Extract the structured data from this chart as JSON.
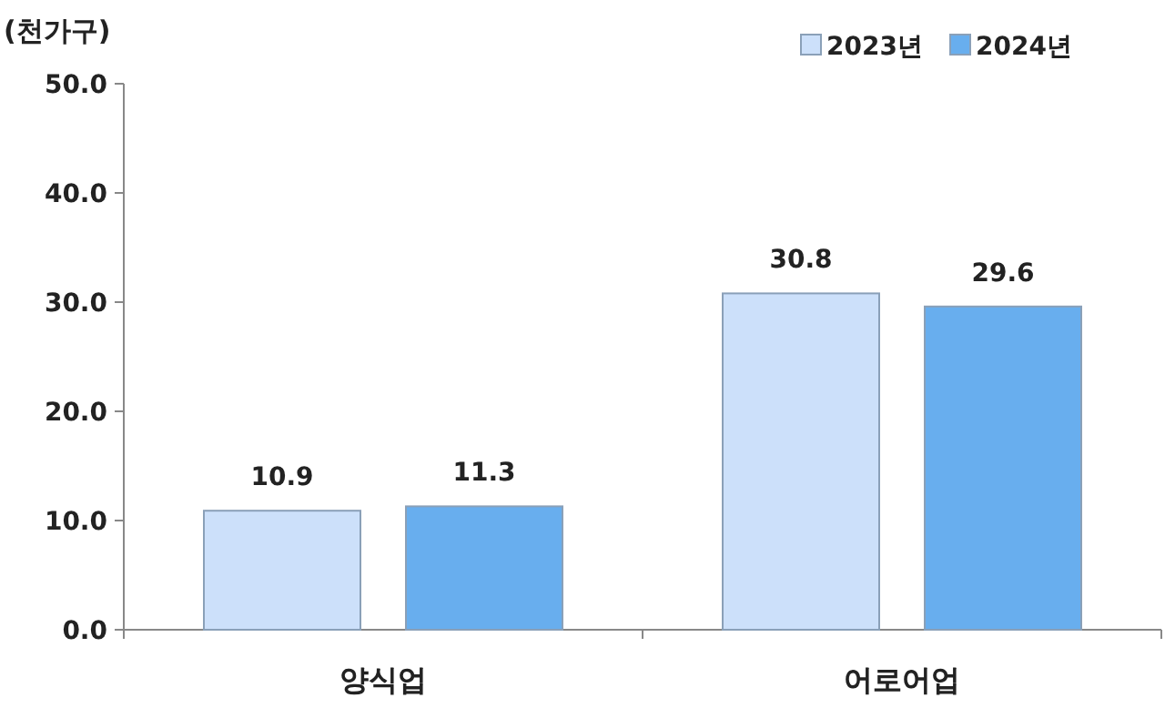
{
  "chart_data": {
    "type": "bar",
    "ylabel": "(천가구)",
    "categories": [
      "양식업",
      "어로어업"
    ],
    "series": [
      {
        "name": "2023년",
        "color": "#cce0fa",
        "values": [
          10.9,
          30.8
        ]
      },
      {
        "name": "2024년",
        "color": "#68aeee",
        "values": [
          11.3,
          29.6
        ]
      }
    ],
    "ylim": [
      0,
      50
    ],
    "yticks": [
      {
        "value": 0,
        "label": "0.0"
      },
      {
        "value": 10,
        "label": "10.0"
      },
      {
        "value": 20,
        "label": "20.0"
      },
      {
        "value": 30,
        "label": "30.0"
      },
      {
        "value": 40,
        "label": "40.0"
      },
      {
        "value": 50,
        "label": "50.0"
      }
    ],
    "legend": "top right",
    "data_labels": true
  }
}
